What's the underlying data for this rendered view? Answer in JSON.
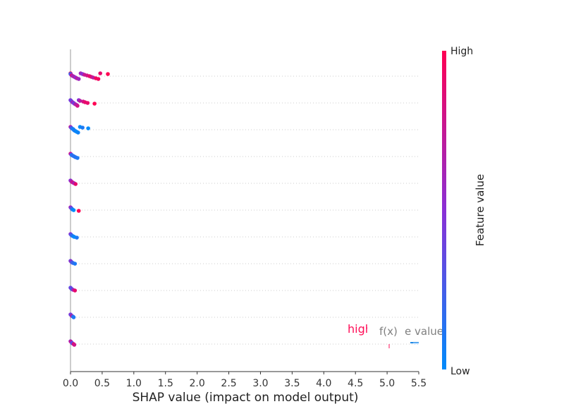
{
  "chart_data": {
    "type": "scatter",
    "title": "",
    "xlabel": "SHAP value (impact on model output)",
    "ylabel": "",
    "xlim": [
      0,
      5.5
    ],
    "x_ticks": [
      "0.0",
      "0.5",
      "1.0",
      "1.5",
      "2.0",
      "2.5",
      "3.0",
      "3.5",
      "4.0",
      "4.5",
      "5.0",
      "5.5"
    ],
    "grid": "horizontal dotted rows",
    "colorbar": {
      "label": "Feature value",
      "high_label": "High",
      "low_label": "Low",
      "color_high": "#ff0052",
      "color_mid": "#8a2fd6",
      "color_low": "#008bfb"
    },
    "rows": [
      {
        "points": [
          [
            0.0,
            0.9
          ],
          [
            0.0,
            0.1
          ],
          [
            0.01,
            0.5
          ],
          [
            0.02,
            0.8
          ],
          [
            0.04,
            0.6
          ],
          [
            0.06,
            0.7
          ],
          [
            0.08,
            0.5
          ],
          [
            0.1,
            0.7
          ],
          [
            0.13,
            0.6
          ],
          [
            0.16,
            0.6
          ],
          [
            0.19,
            0.5
          ],
          [
            0.22,
            0.75
          ],
          [
            0.26,
            0.8
          ],
          [
            0.3,
            0.9
          ],
          [
            0.33,
            0.85
          ],
          [
            0.36,
            0.7
          ],
          [
            0.4,
            0.95
          ],
          [
            0.44,
            0.95
          ],
          [
            0.47,
            0.9
          ],
          [
            0.59,
            1.0
          ]
        ]
      },
      {
        "points": [
          [
            0.0,
            0.4
          ],
          [
            0.01,
            0.5
          ],
          [
            0.02,
            0.3
          ],
          [
            0.03,
            0.6
          ],
          [
            0.05,
            0.5
          ],
          [
            0.06,
            0.4
          ],
          [
            0.08,
            0.7
          ],
          [
            0.1,
            0.6
          ],
          [
            0.11,
            0.8
          ],
          [
            0.13,
            0.5
          ],
          [
            0.15,
            0.7
          ],
          [
            0.2,
            0.8
          ],
          [
            0.23,
            0.9
          ],
          [
            0.27,
            0.9
          ],
          [
            0.38,
            1.0
          ]
        ]
      },
      {
        "points": [
          [
            0.0,
            0.7
          ],
          [
            0.01,
            0.4
          ],
          [
            0.02,
            0.2
          ],
          [
            0.04,
            0.1
          ],
          [
            0.05,
            0.0
          ],
          [
            0.06,
            0.1
          ],
          [
            0.08,
            0.05
          ],
          [
            0.1,
            0.0
          ],
          [
            0.12,
            0.05
          ],
          [
            0.15,
            0.0
          ],
          [
            0.19,
            0.1
          ],
          [
            0.28,
            0.0
          ]
        ]
      },
      {
        "points": [
          [
            0.0,
            0.8
          ],
          [
            0.01,
            0.5
          ],
          [
            0.02,
            0.1
          ],
          [
            0.04,
            0.2
          ],
          [
            0.06,
            0.1
          ],
          [
            0.08,
            0.15
          ],
          [
            0.11,
            0.1
          ]
        ]
      },
      {
        "points": [
          [
            0.0,
            0.5
          ],
          [
            0.01,
            0.6
          ],
          [
            0.02,
            0.7
          ],
          [
            0.04,
            0.8
          ],
          [
            0.06,
            0.6
          ],
          [
            0.08,
            0.9
          ]
        ]
      },
      {
        "points": [
          [
            0.0,
            0.6
          ],
          [
            0.01,
            0.4
          ],
          [
            0.02,
            0.3
          ],
          [
            0.03,
            0.1
          ],
          [
            0.05,
            0.0
          ],
          [
            0.13,
            1.0
          ]
        ]
      },
      {
        "points": [
          [
            0.0,
            0.5
          ],
          [
            0.01,
            0.3
          ],
          [
            0.02,
            0.2
          ],
          [
            0.04,
            0.1
          ],
          [
            0.06,
            0.0
          ],
          [
            0.1,
            0.1
          ]
        ]
      },
      {
        "points": [
          [
            0.0,
            0.4
          ],
          [
            0.01,
            0.6
          ],
          [
            0.02,
            0.3
          ],
          [
            0.04,
            0.2
          ],
          [
            0.07,
            0.1
          ]
        ]
      },
      {
        "points": [
          [
            0.0,
            0.3
          ],
          [
            0.01,
            0.5
          ],
          [
            0.02,
            0.2
          ],
          [
            0.04,
            0.6
          ],
          [
            0.07,
            0.9
          ]
        ]
      },
      {
        "points": [
          [
            0.0,
            0.5
          ],
          [
            0.01,
            0.3
          ],
          [
            0.02,
            0.7
          ],
          [
            0.04,
            0.2
          ],
          [
            0.05,
            0.1
          ]
        ]
      },
      {
        "points": [
          [
            0.0,
            0.6
          ],
          [
            0.01,
            0.8
          ],
          [
            0.02,
            0.5
          ],
          [
            0.03,
            0.3
          ],
          [
            0.05,
            0.9
          ],
          [
            0.06,
            0.8
          ]
        ]
      }
    ],
    "overlay_annotations": [
      {
        "text": "high",
        "color": "#ff0d57"
      },
      {
        "text": "f(x)",
        "color": "#808080"
      },
      {
        "text": "e value",
        "color": "#808080"
      }
    ]
  }
}
